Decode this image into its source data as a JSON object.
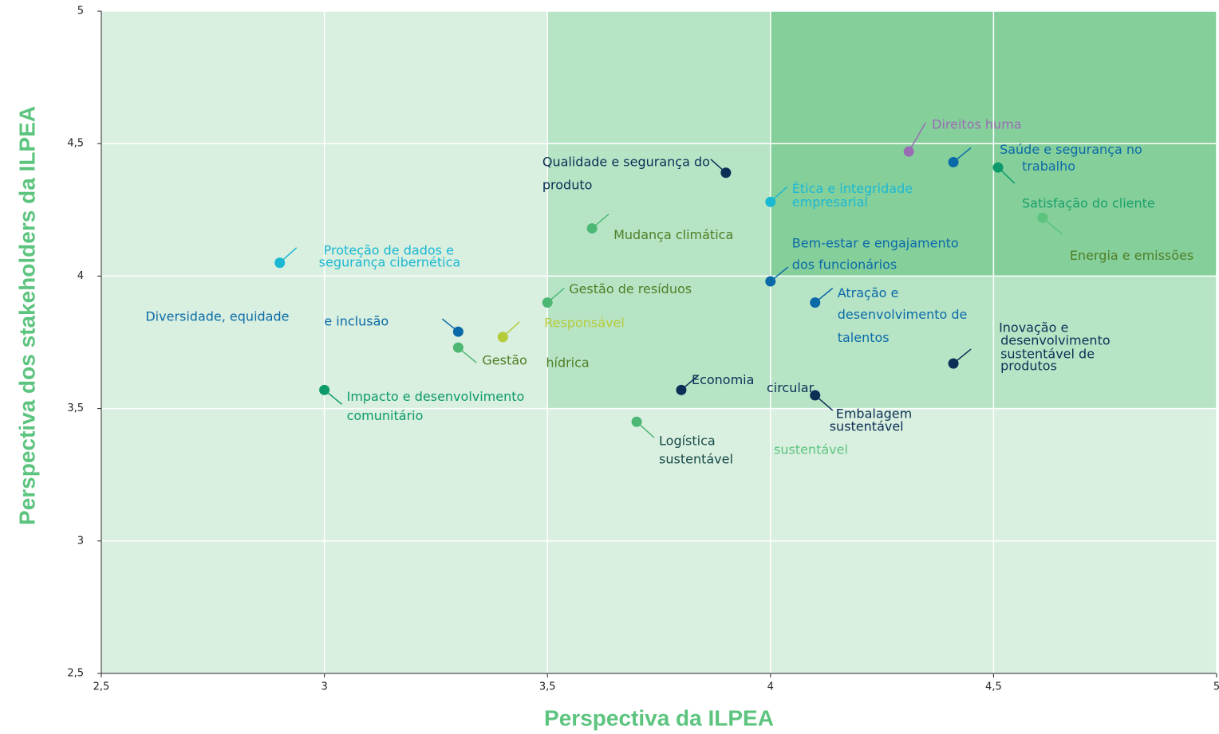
{
  "chart_data": {
    "type": "scatter",
    "x_label": "Perspectiva da ILPEA",
    "y_label": "Perspectiva dos stakeholders da ILPEA",
    "xlim": [
      2.5,
      5
    ],
    "ylim": [
      2.5,
      5
    ],
    "xticks": [
      {
        "value": 2.5,
        "label": "2,5"
      },
      3,
      {
        "value": 3.5,
        "label": "3,5"
      },
      4,
      {
        "value": 4.5,
        "label": "4,5"
      },
      5
    ],
    "yticks": [
      {
        "value": 2.5,
        "label": "2,5"
      },
      3,
      {
        "value": 3.5,
        "label": "3,5"
      },
      4,
      {
        "value": 4.5,
        "label": "4,5"
      },
      5
    ],
    "grid": true,
    "background": "#d9efdf",
    "regions": [
      {
        "xlim": [
          3.5,
          5
        ],
        "ylim": [
          3.5,
          5
        ],
        "color": "#b8e4c6"
      },
      {
        "xlim": [
          4,
          5
        ],
        "ylim": [
          4,
          5
        ],
        "color": "#85cf9b"
      }
    ],
    "points": [
      {
        "label": [
          "Proteção de dados e",
          "segurança cibernética"
        ],
        "x": 2.9,
        "y": 4.05,
        "color": "#1bb8d4",
        "label_color": "#1bb8d4"
      },
      {
        "label": [
          "Diversidade, equidade",
          "e inclusão"
        ],
        "x": 3.3,
        "y": 3.79,
        "color": "#0a6aa8",
        "label_color": "#0a6aa8"
      },
      {
        "label": [
          "Responsável"
        ],
        "x": 3.4,
        "y": 3.77,
        "color": "#b5cc3a",
        "label_color": "#b5cc3a"
      },
      {
        "label": [
          "Gestão",
          "hídrica"
        ],
        "x": 3.3,
        "y": 3.73,
        "color": "#4db873",
        "label_color": "#4f7f25"
      },
      {
        "label": [
          "Impacto e desenvolvimento",
          "comunitário"
        ],
        "x": 3.0,
        "y": 3.57,
        "color": "#0d9a6a",
        "label_color": "#0d9a6a"
      },
      {
        "label": [
          "Gestão de resíduos"
        ],
        "x": 3.5,
        "y": 3.9,
        "color": "#4db873",
        "label_color": "#4f7f25"
      },
      {
        "label": [
          "Mudança climática"
        ],
        "x": 3.6,
        "y": 4.18,
        "color": "#4db873",
        "label_color": "#4f7f25"
      },
      {
        "label": [
          "Qualidade e segurança do",
          "produto"
        ],
        "x": 3.9,
        "y": 4.39,
        "color": "#0b2f55",
        "label_color": "#0b2f55"
      },
      {
        "label": [
          "Economia",
          "circular"
        ],
        "x": 3.8,
        "y": 3.57,
        "color": "#0b2f55",
        "label_color": "#0b2f55"
      },
      {
        "label": [
          "Logística",
          "sustentável"
        ],
        "x": 3.7,
        "y": 3.45,
        "color": "#4db873",
        "label_color": "#164a48"
      },
      {
        "label": [
          "Ética e integridade",
          "empresarial"
        ],
        "x": 4.0,
        "y": 4.28,
        "color": "#1bb8d4",
        "label_color": "#1bb8d4"
      },
      {
        "label": [
          "Bem-estar e engajamento",
          "dos funcionários"
        ],
        "x": 4.0,
        "y": 3.98,
        "color": "#0a6aa8",
        "label_color": "#0a6aa8"
      },
      {
        "label": [
          "Atração e",
          "desenvolvimento de",
          "talentos"
        ],
        "x": 4.1,
        "y": 3.9,
        "color": "#0a6aa8",
        "label_color": "#0a6aa8"
      },
      {
        "label": [
          "Embalagem",
          "sustentável"
        ],
        "x": 4.1,
        "y": 3.55,
        "color": "#0b2f55",
        "label_color": "#0b2f55"
      },
      {
        "label": [
          "Direitos huma"
        ],
        "x": 4.31,
        "y": 4.47,
        "color": "#9b6bb5",
        "label_color": "#9b6bb5"
      },
      {
        "label": [
          "Saúde e segurança no",
          "trabalho"
        ],
        "x": 4.41,
        "y": 4.43,
        "color": "#0a6aa8",
        "label_color": "#0a6aa8"
      },
      {
        "label": [
          "Satisfação do cliente"
        ],
        "x": 4.51,
        "y": 4.41,
        "color": "#0d9a6a",
        "label_color": "#1aa06a"
      },
      {
        "label": [
          "Energia e emissões"
        ],
        "x": 4.61,
        "y": 4.22,
        "color": "#5cc47e",
        "label_color": "#4f7f25"
      },
      {
        "label": [
          "Inovação e",
          "desenvolvimento",
          "sustentável de",
          "produtos"
        ],
        "x": 4.41,
        "y": 3.67,
        "color": "#0b2f55",
        "label_color": "#0b2f55"
      }
    ],
    "annotations": [
      {
        "text": "sustentável",
        "color": "#5cc47e"
      }
    ]
  }
}
